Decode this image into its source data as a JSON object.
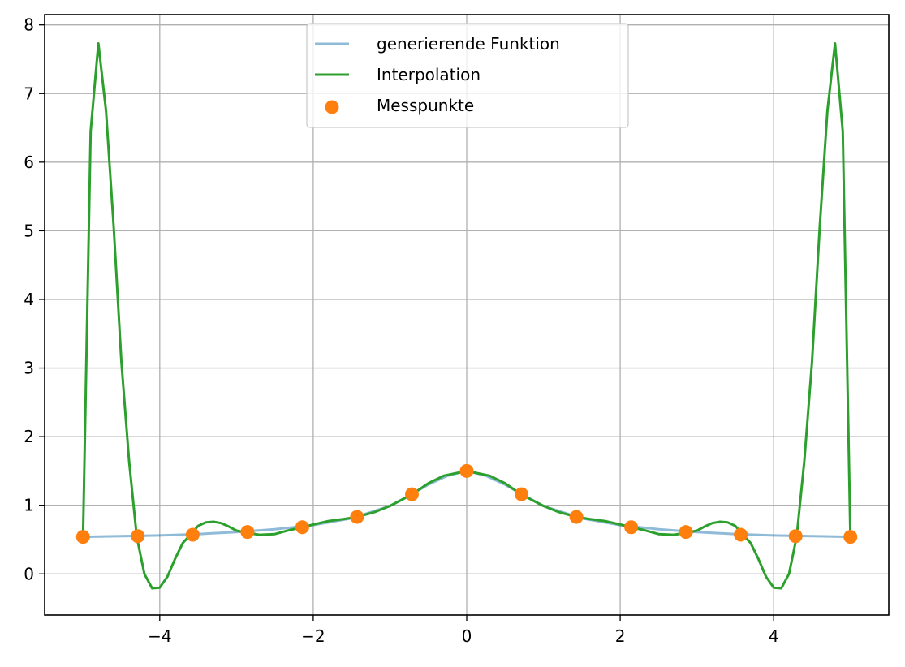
{
  "chart_data": {
    "type": "line",
    "title": "",
    "xlabel": "",
    "ylabel": "",
    "xlim": [
      -5.5,
      5.5
    ],
    "ylim": [
      -0.6,
      8.15
    ],
    "grid": true,
    "legend_position": "top-center",
    "x_ticks": [
      {
        "value": -4,
        "label": "−4"
      },
      {
        "value": -2,
        "label": "−2"
      },
      {
        "value": 0,
        "label": "0"
      },
      {
        "value": 2,
        "label": "2"
      },
      {
        "value": 4,
        "label": "4"
      }
    ],
    "y_ticks": [
      {
        "value": 0,
        "label": "0"
      },
      {
        "value": 1,
        "label": "1"
      },
      {
        "value": 2,
        "label": "2"
      },
      {
        "value": 3,
        "label": "3"
      },
      {
        "value": 4,
        "label": "4"
      },
      {
        "value": 5,
        "label": "5"
      },
      {
        "value": 6,
        "label": "6"
      },
      {
        "value": 7,
        "label": "7"
      },
      {
        "value": 8,
        "label": "8"
      }
    ],
    "series": [
      {
        "name": "generierende Funktion",
        "type": "line",
        "color": "#1f77b4",
        "opacity": 0.5,
        "x": [
          -5.0,
          -4.5,
          -4.0,
          -3.5,
          -3.0,
          -2.5,
          -2.0,
          -1.5,
          -1.0,
          -0.75,
          -0.5,
          -0.25,
          0.0,
          0.25,
          0.5,
          0.75,
          1.0,
          1.5,
          2.0,
          2.5,
          3.0,
          3.5,
          4.0,
          4.5,
          5.0
        ],
        "y": [
          0.54,
          0.55,
          0.56,
          0.58,
          0.61,
          0.65,
          0.71,
          0.81,
          0.99,
          1.14,
          1.3,
          1.43,
          1.5,
          1.43,
          1.3,
          1.14,
          0.99,
          0.81,
          0.71,
          0.65,
          0.61,
          0.58,
          0.56,
          0.55,
          0.54
        ]
      },
      {
        "name": "Interpolation",
        "type": "line",
        "color": "#2ca02c",
        "x": [
          -5.0,
          -4.9,
          -4.8,
          -4.7,
          -4.6,
          -4.5,
          -4.4,
          -4.3,
          -4.2,
          -4.1,
          -4.0,
          -3.9,
          -3.8,
          -3.7,
          -3.6,
          -3.5,
          -3.4,
          -3.3,
          -3.2,
          -3.1,
          -3.0,
          -2.86,
          -2.7,
          -2.5,
          -2.3,
          -2.14,
          -2.0,
          -1.8,
          -1.6,
          -1.43,
          -1.2,
          -1.0,
          -0.71,
          -0.5,
          -0.3,
          0.0,
          0.3,
          0.5,
          0.71,
          1.0,
          1.2,
          1.43,
          1.6,
          1.8,
          2.0,
          2.14,
          2.3,
          2.5,
          2.7,
          2.86,
          3.0,
          3.1,
          3.2,
          3.3,
          3.4,
          3.5,
          3.6,
          3.7,
          3.8,
          3.9,
          4.0,
          4.1,
          4.2,
          4.3,
          4.4,
          4.5,
          4.6,
          4.7,
          4.8,
          4.9,
          5.0
        ],
        "y": [
          0.54,
          6.45,
          7.73,
          6.75,
          5.05,
          3.1,
          1.65,
          0.54,
          0.0,
          -0.21,
          -0.2,
          -0.04,
          0.22,
          0.45,
          0.57,
          0.7,
          0.75,
          0.76,
          0.74,
          0.69,
          0.63,
          0.6,
          0.57,
          0.58,
          0.64,
          0.68,
          0.72,
          0.77,
          0.8,
          0.83,
          0.9,
          0.99,
          1.16,
          1.32,
          1.43,
          1.5,
          1.43,
          1.32,
          1.16,
          0.99,
          0.9,
          0.83,
          0.8,
          0.77,
          0.72,
          0.68,
          0.64,
          0.58,
          0.57,
          0.6,
          0.63,
          0.69,
          0.74,
          0.76,
          0.75,
          0.7,
          0.57,
          0.45,
          0.22,
          -0.04,
          -0.2,
          -0.21,
          0.0,
          0.54,
          1.65,
          3.1,
          5.05,
          6.75,
          7.73,
          6.45,
          0.54
        ]
      },
      {
        "name": "Messpunkte",
        "type": "scatter",
        "color": "#ff7f0e",
        "x": [
          -5.0,
          -4.286,
          -3.571,
          -2.857,
          -2.143,
          -1.429,
          -0.714,
          0.0,
          0.714,
          1.429,
          2.143,
          2.857,
          3.571,
          4.286,
          5.0
        ],
        "y": [
          0.54,
          0.55,
          0.57,
          0.61,
          0.68,
          0.83,
          1.16,
          1.5,
          1.16,
          0.83,
          0.68,
          0.61,
          0.57,
          0.55,
          0.54
        ]
      }
    ]
  }
}
